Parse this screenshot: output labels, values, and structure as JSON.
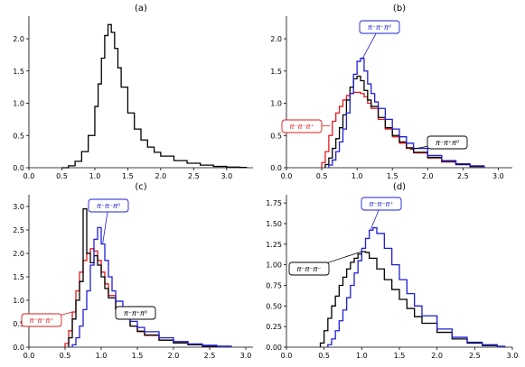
{
  "chart_data": [
    {
      "type": "line",
      "title": "(a)",
      "xlim": [
        0.0,
        3.4
      ],
      "ylim": [
        0.0,
        2.35
      ],
      "xticks": [
        "0.0",
        "0.5",
        "1.0",
        "1.5",
        "2.0",
        "2.5",
        "3.0"
      ],
      "yticks": [
        "0.0",
        "0.5",
        "1.0",
        "1.5",
        "2.0"
      ],
      "series": [
        {
          "color": "#000000",
          "x": [
            0.5,
            0.6,
            0.7,
            0.8,
            0.9,
            1.0,
            1.05,
            1.1,
            1.15,
            1.2,
            1.25,
            1.3,
            1.35,
            1.4,
            1.5,
            1.6,
            1.7,
            1.8,
            1.9,
            2.0,
            2.2,
            2.4,
            2.6,
            2.8,
            3.0,
            3.2,
            3.3
          ],
          "y": [
            0.0,
            0.03,
            0.1,
            0.25,
            0.5,
            0.95,
            1.3,
            1.7,
            2.05,
            2.22,
            2.1,
            1.85,
            1.55,
            1.25,
            0.85,
            0.6,
            0.43,
            0.32,
            0.24,
            0.18,
            0.11,
            0.07,
            0.04,
            0.02,
            0.01,
            0.005,
            0.0
          ]
        }
      ]
    },
    {
      "type": "line",
      "title": "(b)",
      "xlim": [
        0.0,
        3.2
      ],
      "ylim": [
        0.0,
        2.35
      ],
      "xticks": [
        "0.0",
        "0.5",
        "1.0",
        "1.5",
        "2.0",
        "2.5",
        "3.0"
      ],
      "yticks": [
        "0.0",
        "0.5",
        "1.0",
        "1.5",
        "2.0"
      ],
      "series": [
        {
          "color": "#e31a1c",
          "x": [
            0.5,
            0.55,
            0.6,
            0.65,
            0.7,
            0.75,
            0.8,
            0.85,
            0.9,
            0.95,
            1.0,
            1.05,
            1.1,
            1.15,
            1.2,
            1.3,
            1.4,
            1.5,
            1.6,
            1.7,
            1.8,
            2.0,
            2.2,
            2.4,
            2.6,
            2.8
          ],
          "y": [
            0.08,
            0.25,
            0.5,
            0.72,
            0.85,
            0.95,
            1.05,
            1.12,
            1.15,
            1.17,
            1.17,
            1.15,
            1.1,
            1.0,
            0.92,
            0.75,
            0.6,
            0.48,
            0.38,
            0.3,
            0.23,
            0.15,
            0.09,
            0.05,
            0.02,
            0.0
          ]
        },
        {
          "color": "#000000",
          "x": [
            0.55,
            0.6,
            0.65,
            0.7,
            0.75,
            0.8,
            0.85,
            0.9,
            0.95,
            1.0,
            1.05,
            1.1,
            1.15,
            1.2,
            1.3,
            1.4,
            1.5,
            1.6,
            1.7,
            1.8,
            2.0,
            2.2,
            2.4,
            2.6,
            2.8
          ],
          "y": [
            0.05,
            0.15,
            0.3,
            0.45,
            0.62,
            0.82,
            1.05,
            1.25,
            1.38,
            1.42,
            1.35,
            1.2,
            1.05,
            0.95,
            0.78,
            0.62,
            0.5,
            0.4,
            0.31,
            0.24,
            0.16,
            0.1,
            0.05,
            0.02,
            0.0
          ]
        },
        {
          "color": "#1f1fd6",
          "x": [
            0.6,
            0.65,
            0.7,
            0.75,
            0.8,
            0.85,
            0.9,
            0.95,
            1.0,
            1.05,
            1.1,
            1.15,
            1.2,
            1.25,
            1.3,
            1.4,
            1.5,
            1.6,
            1.7,
            1.8,
            2.0,
            2.2,
            2.4,
            2.6,
            2.8
          ],
          "y": [
            0.04,
            0.12,
            0.25,
            0.4,
            0.6,
            0.85,
            1.15,
            1.45,
            1.65,
            1.7,
            1.5,
            1.3,
            1.15,
            1.02,
            0.92,
            0.75,
            0.6,
            0.48,
            0.38,
            0.3,
            0.19,
            0.11,
            0.06,
            0.03,
            0.0
          ]
        }
      ],
      "annotations": [
        {
          "text": "π⁻π⁻π⁰",
          "color": "#1f1fd6"
        },
        {
          "text": "π⁻π⁻π⁺",
          "color": "#e31a1c"
        },
        {
          "text": "π⁻π⁺π⁰",
          "color": "#000000"
        }
      ]
    },
    {
      "type": "line",
      "title": "(c)",
      "xlim": [
        0.0,
        3.1
      ],
      "ylim": [
        0.0,
        3.25
      ],
      "xticks": [
        "0.0",
        "0.5",
        "1.0",
        "1.5",
        "2.0",
        "2.5",
        "3.0"
      ],
      "yticks": [
        "0.0",
        "0.5",
        "1.0",
        "1.5",
        "2.0",
        "2.5",
        "3.0"
      ],
      "series": [
        {
          "color": "#e31a1c",
          "x": [
            0.5,
            0.55,
            0.6,
            0.65,
            0.7,
            0.75,
            0.8,
            0.85,
            0.9,
            0.95,
            1.0,
            1.05,
            1.1,
            1.2,
            1.3,
            1.4,
            1.5,
            1.6,
            1.8,
            2.0,
            2.2,
            2.4,
            2.6
          ],
          "y": [
            0.08,
            0.35,
            0.75,
            1.2,
            1.6,
            1.85,
            2.0,
            2.1,
            2.05,
            1.85,
            1.6,
            1.35,
            1.1,
            0.8,
            0.6,
            0.45,
            0.33,
            0.25,
            0.15,
            0.09,
            0.05,
            0.02,
            0.0
          ]
        },
        {
          "color": "#000000",
          "x": [
            0.55,
            0.6,
            0.65,
            0.7,
            0.75,
            0.8,
            0.85,
            0.9,
            0.95,
            1.0,
            1.05,
            1.1,
            1.2,
            1.3,
            1.4,
            1.5,
            1.6,
            1.8,
            2.0,
            2.2,
            2.4,
            2.6
          ],
          "y": [
            0.2,
            0.6,
            1.0,
            1.4,
            2.95,
            2.0,
            1.8,
            1.95,
            1.75,
            1.5,
            1.25,
            1.05,
            0.8,
            0.6,
            0.45,
            0.34,
            0.26,
            0.15,
            0.09,
            0.05,
            0.02,
            0.0
          ]
        },
        {
          "color": "#1f1fd6",
          "x": [
            0.6,
            0.65,
            0.7,
            0.75,
            0.8,
            0.85,
            0.9,
            0.95,
            1.0,
            1.05,
            1.1,
            1.15,
            1.2,
            1.3,
            1.4,
            1.5,
            1.6,
            1.8,
            2.0,
            2.2,
            2.4,
            2.6,
            2.8
          ],
          "y": [
            0.05,
            0.2,
            0.45,
            0.8,
            1.2,
            1.75,
            2.3,
            2.55,
            2.2,
            1.85,
            1.5,
            1.2,
            0.98,
            0.72,
            0.55,
            0.42,
            0.33,
            0.2,
            0.12,
            0.07,
            0.04,
            0.02,
            0.0
          ]
        }
      ],
      "annotations": [
        {
          "text": "π⁻π⁻π⁰",
          "color": "#1f1fd6"
        },
        {
          "text": "π⁻π⁻π⁺",
          "color": "#e31a1c"
        },
        {
          "text": "π⁻π⁺π⁰",
          "color": "#000000"
        }
      ]
    },
    {
      "type": "line",
      "title": "(d)",
      "xlim": [
        0.0,
        3.0
      ],
      "ylim": [
        0.0,
        1.85
      ],
      "xticks": [
        "0.0",
        "0.5",
        "1.0",
        "1.5",
        "2.0",
        "2.5",
        "3.0"
      ],
      "yticks": [
        "0.00",
        "0.25",
        "0.50",
        "0.75",
        "1.00",
        "1.25",
        "1.50",
        "1.75"
      ],
      "series": [
        {
          "color": "#000000",
          "x": [
            0.45,
            0.5,
            0.55,
            0.6,
            0.65,
            0.7,
            0.75,
            0.8,
            0.85,
            0.9,
            0.95,
            1.0,
            1.05,
            1.1,
            1.2,
            1.3,
            1.4,
            1.5,
            1.6,
            1.7,
            1.8,
            2.0,
            2.2,
            2.4,
            2.6,
            2.8
          ],
          "y": [
            0.05,
            0.2,
            0.35,
            0.5,
            0.62,
            0.75,
            0.85,
            0.95,
            1.03,
            1.08,
            1.13,
            1.16,
            1.15,
            1.08,
            0.95,
            0.82,
            0.7,
            0.58,
            0.47,
            0.37,
            0.29,
            0.18,
            0.1,
            0.05,
            0.02,
            0.0
          ]
        },
        {
          "color": "#1f1fd6",
          "x": [
            0.55,
            0.6,
            0.65,
            0.7,
            0.75,
            0.8,
            0.85,
            0.9,
            0.95,
            1.0,
            1.05,
            1.1,
            1.15,
            1.2,
            1.3,
            1.4,
            1.5,
            1.6,
            1.7,
            1.8,
            2.0,
            2.2,
            2.4,
            2.6,
            2.8,
            2.9
          ],
          "y": [
            0.03,
            0.1,
            0.2,
            0.32,
            0.45,
            0.6,
            0.75,
            0.9,
            1.05,
            1.2,
            1.32,
            1.42,
            1.45,
            1.38,
            1.2,
            1.0,
            0.82,
            0.65,
            0.5,
            0.38,
            0.22,
            0.12,
            0.06,
            0.03,
            0.01,
            0.0
          ]
        }
      ],
      "annotations": [
        {
          "text": "π⁻π⁻π⁺",
          "color": "#1f1fd6"
        },
        {
          "text": "π⁻π⁻π⁻",
          "color": "#000000"
        }
      ]
    }
  ]
}
